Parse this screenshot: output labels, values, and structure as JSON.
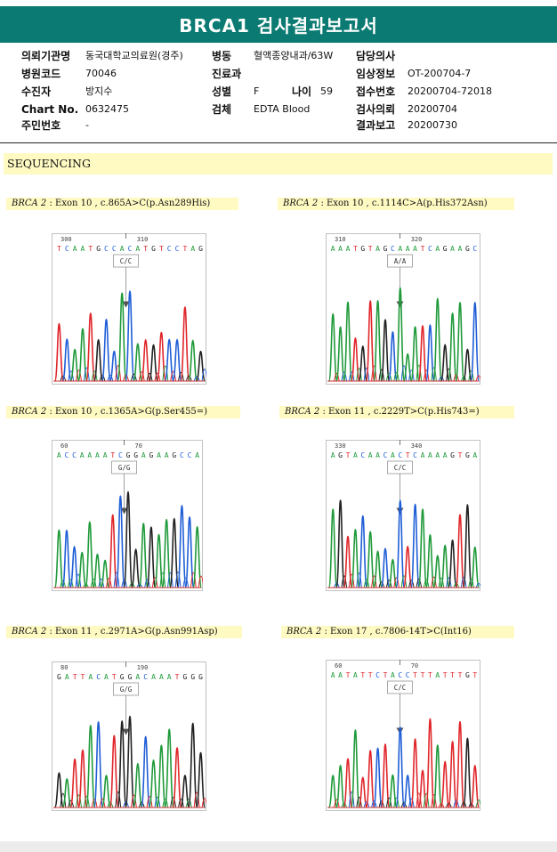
{
  "report": {
    "title": "BRCA1 검사결과보고서"
  },
  "info": {
    "institution_label": "의뢰기관명",
    "institution": "동국대학교의료원(경주)",
    "ward_label": "병동",
    "ward": "혈액종양내과/63W",
    "doctor_label": "담당의사",
    "doctor": "",
    "hospital_code_label": "병원코드",
    "hospital_code": "70046",
    "department_label": "진료과",
    "department": "",
    "clinical_info_label": "임상정보",
    "clinical_info": "OT-200704-7",
    "collector_label": "수진자",
    "collector": "방지수",
    "sex_label": "성별",
    "sex": "F",
    "age_label": "나이",
    "age": "59",
    "receipt_no_label": "접수번호",
    "receipt_no": "20200704-72018",
    "chart_no_label": "Chart No.",
    "chart_no": "0632475",
    "specimen_label": "검체",
    "specimen": "EDTA Blood",
    "request_date_label": "검사의뢰",
    "request_date": "20200704",
    "resident_no_label": "주민번호",
    "resident_no": "-",
    "report_date_label": "결과보고",
    "report_date": "20200730"
  },
  "section": {
    "sequencing_label": "SEQUENCING"
  },
  "colors": {
    "header": "#0a7a72",
    "caption_bg": "#fffac2",
    "A": "#1f9a3a",
    "C": "#1f5ed6",
    "G": "#222222",
    "T": "#e0262a"
  },
  "panels": [
    {
      "gene": "BRCA 2",
      "caption": ": Exon 10 , c.865A>C(p.Asn289His)",
      "pos1": "300",
      "pos2": "310",
      "sequence": "TCAATGCCACATGTCCTAG",
      "genotype": "C/C"
    },
    {
      "gene": "BRCA 2",
      "caption": ": Exon 10 , c.1114C>A(p.His372Asn)",
      "pos1": "310",
      "pos2": "320",
      "sequence": "AAATGTAGCAAATCAGAAGC",
      "genotype": "A/A"
    },
    {
      "gene": "BRCA 2",
      "caption": ": Exon 10 , c.1365A>G(p.Ser455=)",
      "pos1": "60",
      "pos2": "70",
      "sequence": "ACCAAAATCGGAGAAGCCA",
      "genotype": "G/G"
    },
    {
      "gene": "BRCA 2",
      "caption": ": Exon 11 , c.2229T>C(p.His743=)",
      "pos1": "330",
      "pos2": "340",
      "sequence": "AGTACAACACTCAAAAGTGA",
      "genotype": "C/C"
    },
    {
      "gene": "BRCA 2",
      "caption": ": Exon 11 , c.2971A>G(p.Asn991Asp)",
      "pos1": "80",
      "pos2": "190",
      "sequence": "GATTACATGGACAAATGGG",
      "genotype": "G/G"
    },
    {
      "gene": "BRCA 2",
      "caption": ": Exon 17 , c.7806-14T>C(Int16)",
      "pos1": "60",
      "pos2": "70",
      "sequence": "AATATTCTACCTTTATTTGT",
      "genotype": "C/C"
    }
  ]
}
